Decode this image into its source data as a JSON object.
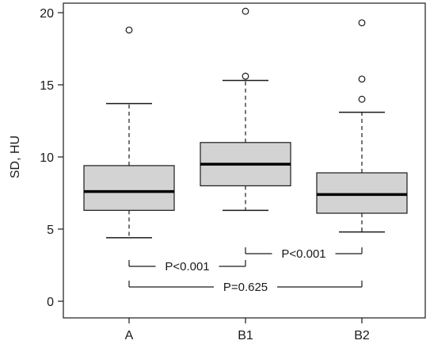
{
  "chart_data": {
    "type": "box",
    "title": "",
    "xlabel": "",
    "ylabel": "SD, HU",
    "ylim": [
      0,
      20
    ],
    "yticks": [
      0,
      5,
      10,
      15,
      20
    ],
    "grid": false,
    "box_fill": "#d3d3d3",
    "categories": [
      "A",
      "B1",
      "B2"
    ],
    "boxes": [
      {
        "category": "A",
        "whisker_low": 4.4,
        "q1": 6.3,
        "median": 7.6,
        "q3": 9.4,
        "whisker_high": 13.7,
        "outliers": [
          18.8
        ]
      },
      {
        "category": "B1",
        "whisker_low": 6.3,
        "q1": 8.0,
        "median": 9.5,
        "q3": 11.0,
        "whisker_high": 15.3,
        "outliers": [
          15.6,
          20.1
        ]
      },
      {
        "category": "B2",
        "whisker_low": 4.8,
        "q1": 6.1,
        "median": 7.4,
        "q3": 8.9,
        "whisker_high": 13.1,
        "outliers": [
          14.0,
          15.4,
          19.3
        ]
      }
    ],
    "comparisons": [
      {
        "from": "A",
        "to": "B1",
        "label": "P<0.001"
      },
      {
        "from": "B1",
        "to": "B2",
        "label": "P<0.001"
      },
      {
        "from": "A",
        "to": "B2",
        "label": "P=0.625"
      }
    ]
  }
}
